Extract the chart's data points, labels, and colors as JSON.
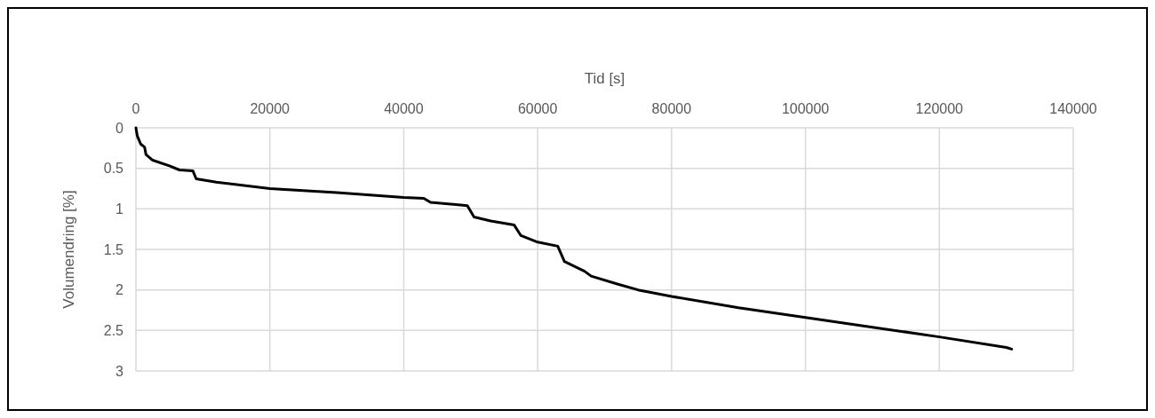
{
  "chart_data": {
    "type": "line",
    "xlabel": "Tid [s]",
    "ylabel": "Volumendring  [%]",
    "xlim": [
      0,
      140000
    ],
    "xticks": [
      0,
      20000,
      40000,
      60000,
      80000,
      100000,
      120000,
      140000
    ],
    "ylim": [
      3,
      0
    ],
    "yticks": [
      0,
      0.5,
      1,
      1.5,
      2,
      2.5,
      3
    ],
    "grid": true,
    "series": [
      {
        "color": "#000000",
        "x": [
          0,
          200,
          700,
          1300,
          1500,
          2500,
          5000,
          6500,
          8500,
          9000,
          12000,
          20000,
          30000,
          40000,
          43000,
          44000,
          49500,
          50500,
          53000,
          56500,
          57500,
          60000,
          63000,
          64000,
          67000,
          68000,
          72000,
          75000,
          80000,
          90000,
          100000,
          110000,
          120000,
          130000,
          130800
        ],
        "values": [
          0,
          0.1,
          0.2,
          0.24,
          0.33,
          0.4,
          0.47,
          0.52,
          0.53,
          0.63,
          0.67,
          0.75,
          0.8,
          0.86,
          0.87,
          0.92,
          0.96,
          1.1,
          1.15,
          1.2,
          1.33,
          1.41,
          1.46,
          1.65,
          1.77,
          1.83,
          1.93,
          2,
          2.08,
          2.22,
          2.34,
          2.46,
          2.58,
          2.71,
          2.73
        ]
      }
    ]
  }
}
